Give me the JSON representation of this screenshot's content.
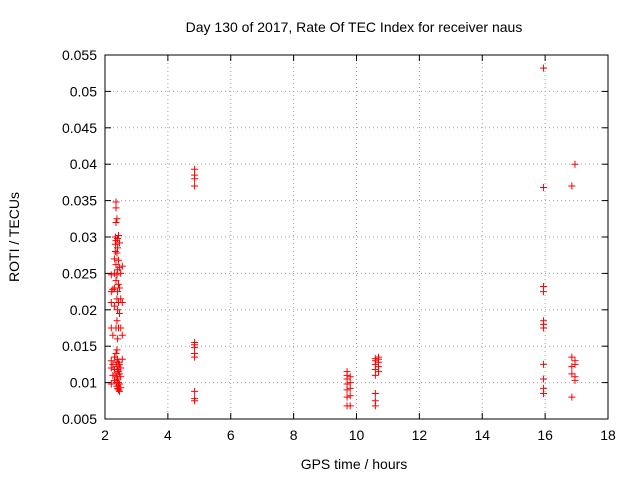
{
  "chart_data": {
    "type": "scatter",
    "title": "Day 130 of 2017, Rate Of TEC Index for receiver naus",
    "xlabel": "GPS time / hours",
    "ylabel": "ROTI / TECUs",
    "xlim": [
      2,
      18
    ],
    "ylim": [
      0.005,
      0.055
    ],
    "xticks": [
      2,
      4,
      6,
      8,
      10,
      12,
      14,
      16,
      18
    ],
    "xtick_labels": [
      "2",
      "4",
      "6",
      "8",
      "10",
      "12",
      "14",
      "16",
      "18"
    ],
    "yticks": [
      0.005,
      0.01,
      0.015,
      0.02,
      0.025,
      0.03,
      0.035,
      0.04,
      0.045,
      0.05,
      0.055
    ],
    "ytick_labels": [
      "0.005",
      "0.01",
      "0.015",
      "0.02",
      "0.025",
      "0.03",
      "0.035",
      "0.04",
      "0.045",
      "0.05",
      "0.055"
    ],
    "grid": true,
    "marker": "plus",
    "color": "#ff0000",
    "series": [
      {
        "points": [
          [
            2.2,
            0.0098
          ],
          [
            2.2,
            0.012
          ],
          [
            2.2,
            0.013
          ],
          [
            2.2,
            0.0175
          ],
          [
            2.2,
            0.021
          ],
          [
            2.2,
            0.0225
          ],
          [
            2.2,
            0.0248
          ],
          [
            2.25,
            0.011
          ],
          [
            2.25,
            0.0125
          ],
          [
            2.25,
            0.0165
          ],
          [
            2.25,
            0.0228
          ],
          [
            2.3,
            0.0103
          ],
          [
            2.3,
            0.0118
          ],
          [
            2.3,
            0.0135
          ],
          [
            2.3,
            0.0205
          ],
          [
            2.3,
            0.023
          ],
          [
            2.3,
            0.025
          ],
          [
            2.3,
            0.027
          ],
          [
            2.33,
            0.028
          ],
          [
            2.33,
            0.029
          ],
          [
            2.33,
            0.03
          ],
          [
            2.35,
            0.01
          ],
          [
            2.35,
            0.0112
          ],
          [
            2.35,
            0.0128
          ],
          [
            2.35,
            0.014
          ],
          [
            2.35,
            0.0175
          ],
          [
            2.35,
            0.024
          ],
          [
            2.35,
            0.0262
          ],
          [
            2.35,
            0.0295
          ],
          [
            2.35,
            0.032
          ],
          [
            2.35,
            0.034
          ],
          [
            2.35,
            0.0348
          ],
          [
            2.38,
            0.0095
          ],
          [
            2.38,
            0.0108
          ],
          [
            2.38,
            0.0122
          ],
          [
            2.38,
            0.0145
          ],
          [
            2.38,
            0.0185
          ],
          [
            2.38,
            0.0215
          ],
          [
            2.38,
            0.0248
          ],
          [
            2.38,
            0.0278
          ],
          [
            2.38,
            0.0325
          ],
          [
            2.4,
            0.0092
          ],
          [
            2.4,
            0.0105
          ],
          [
            2.4,
            0.0118
          ],
          [
            2.4,
            0.0132
          ],
          [
            2.4,
            0.016
          ],
          [
            2.4,
            0.02
          ],
          [
            2.4,
            0.0225
          ],
          [
            2.4,
            0.0255
          ],
          [
            2.4,
            0.0285
          ],
          [
            2.4,
            0.0298
          ],
          [
            2.43,
            0.009
          ],
          [
            2.43,
            0.01
          ],
          [
            2.43,
            0.0115
          ],
          [
            2.43,
            0.0128
          ],
          [
            2.43,
            0.0175
          ],
          [
            2.43,
            0.021
          ],
          [
            2.43,
            0.0235
          ],
          [
            2.43,
            0.0268
          ],
          [
            2.43,
            0.0302
          ],
          [
            2.46,
            0.0088
          ],
          [
            2.46,
            0.0098
          ],
          [
            2.46,
            0.0112
          ],
          [
            2.46,
            0.0125
          ],
          [
            2.46,
            0.0195
          ],
          [
            2.46,
            0.023
          ],
          [
            2.46,
            0.0258
          ],
          [
            2.46,
            0.0292
          ],
          [
            2.5,
            0.0093
          ],
          [
            2.5,
            0.0108
          ],
          [
            2.5,
            0.012
          ],
          [
            2.5,
            0.0175
          ],
          [
            2.5,
            0.0215
          ],
          [
            2.5,
            0.025
          ],
          [
            2.55,
            0.0132
          ],
          [
            2.55,
            0.021
          ],
          [
            2.55,
            0.026
          ],
          [
            2.55,
            0.0165
          ],
          [
            4.85,
            0.0075
          ],
          [
            4.85,
            0.0078
          ],
          [
            4.85,
            0.0088
          ],
          [
            4.85,
            0.0135
          ],
          [
            4.85,
            0.014
          ],
          [
            4.85,
            0.0148
          ],
          [
            4.85,
            0.0152
          ],
          [
            4.85,
            0.0155
          ],
          [
            4.85,
            0.037
          ],
          [
            4.85,
            0.038
          ],
          [
            4.85,
            0.0385
          ],
          [
            4.85,
            0.0393
          ],
          [
            9.7,
            0.0068
          ],
          [
            9.7,
            0.008
          ],
          [
            9.7,
            0.009
          ],
          [
            9.7,
            0.0098
          ],
          [
            9.7,
            0.0105
          ],
          [
            9.7,
            0.011
          ],
          [
            9.7,
            0.0115
          ],
          [
            9.8,
            0.0068
          ],
          [
            9.8,
            0.0082
          ],
          [
            9.8,
            0.0092
          ],
          [
            9.8,
            0.01
          ],
          [
            9.8,
            0.0108
          ],
          [
            10.6,
            0.0068
          ],
          [
            10.6,
            0.0075
          ],
          [
            10.6,
            0.0085
          ],
          [
            10.6,
            0.011
          ],
          [
            10.6,
            0.0118
          ],
          [
            10.6,
            0.0125
          ],
          [
            10.6,
            0.013
          ],
          [
            10.6,
            0.0133
          ],
          [
            10.7,
            0.0115
          ],
          [
            10.7,
            0.0122
          ],
          [
            10.7,
            0.0128
          ],
          [
            10.7,
            0.0132
          ],
          [
            10.7,
            0.0135
          ],
          [
            15.95,
            0.0085
          ],
          [
            15.95,
            0.0092
          ],
          [
            15.95,
            0.0105
          ],
          [
            15.95,
            0.0125
          ],
          [
            15.95,
            0.0175
          ],
          [
            15.95,
            0.018
          ],
          [
            15.95,
            0.0185
          ],
          [
            15.95,
            0.0225
          ],
          [
            15.95,
            0.0232
          ],
          [
            15.95,
            0.0368
          ],
          [
            15.95,
            0.0532
          ],
          [
            16.85,
            0.008
          ],
          [
            16.85,
            0.0112
          ],
          [
            16.85,
            0.0122
          ],
          [
            16.85,
            0.0135
          ],
          [
            16.85,
            0.037
          ],
          [
            16.95,
            0.0103
          ],
          [
            16.95,
            0.0108
          ],
          [
            16.95,
            0.0125
          ],
          [
            16.95,
            0.013
          ],
          [
            16.95,
            0.04
          ]
        ]
      }
    ]
  }
}
